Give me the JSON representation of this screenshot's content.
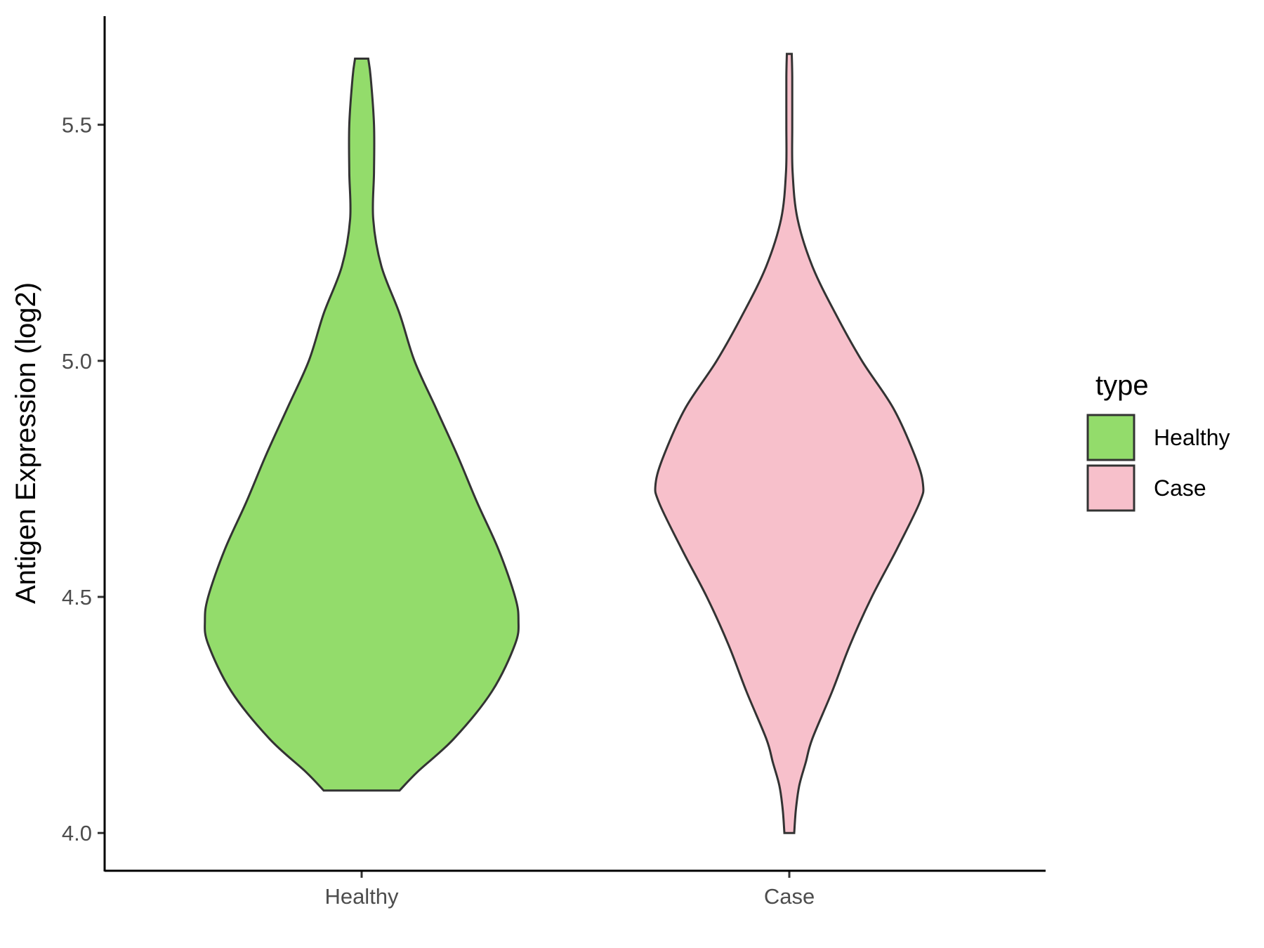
{
  "chart_data": {
    "type": "violin",
    "title": "",
    "xlabel": "",
    "ylabel": "Antigen Expression (log2)",
    "ylim": [
      3.92,
      5.73
    ],
    "y_ticks": [
      "4.0",
      "4.5",
      "5.0",
      "5.5"
    ],
    "y_tick_values": [
      4.0,
      4.5,
      5.0,
      5.5
    ],
    "categories": [
      "Healthy",
      "Case"
    ],
    "grid": false,
    "legend": {
      "title": "type",
      "position": "right",
      "entries": [
        {
          "label": "Healthy",
          "color": "#93DC6B"
        },
        {
          "label": "Case",
          "color": "#F7C0CB"
        }
      ]
    },
    "series": [
      {
        "name": "Healthy",
        "color": "#93DC6B",
        "y_min": 4.09,
        "y_max": 5.64,
        "density_profile": [
          [
            4.09,
            0.23
          ],
          [
            4.13,
            0.34
          ],
          [
            4.2,
            0.56
          ],
          [
            4.3,
            0.79
          ],
          [
            4.4,
            0.93
          ],
          [
            4.45,
            0.95
          ],
          [
            4.5,
            0.93
          ],
          [
            4.6,
            0.83
          ],
          [
            4.7,
            0.7
          ],
          [
            4.8,
            0.58
          ],
          [
            4.9,
            0.45
          ],
          [
            5.0,
            0.32
          ],
          [
            5.1,
            0.23
          ],
          [
            5.2,
            0.12
          ],
          [
            5.3,
            0.07
          ],
          [
            5.4,
            0.075
          ],
          [
            5.5,
            0.075
          ],
          [
            5.6,
            0.055
          ],
          [
            5.64,
            0.04
          ]
        ]
      },
      {
        "name": "Case",
        "color": "#F7C0CB",
        "y_min": 4.0,
        "y_max": 5.65,
        "density_profile": [
          [
            4.0,
            0.03
          ],
          [
            4.05,
            0.04
          ],
          [
            4.1,
            0.06
          ],
          [
            4.15,
            0.1
          ],
          [
            4.2,
            0.14
          ],
          [
            4.3,
            0.26
          ],
          [
            4.4,
            0.37
          ],
          [
            4.5,
            0.5
          ],
          [
            4.6,
            0.65
          ],
          [
            4.7,
            0.79
          ],
          [
            4.74,
            0.81
          ],
          [
            4.8,
            0.76
          ],
          [
            4.9,
            0.63
          ],
          [
            5.0,
            0.44
          ],
          [
            5.1,
            0.28
          ],
          [
            5.2,
            0.14
          ],
          [
            5.3,
            0.05
          ],
          [
            5.4,
            0.02
          ],
          [
            5.5,
            0.018
          ],
          [
            5.6,
            0.018
          ],
          [
            5.65,
            0.015
          ]
        ]
      }
    ]
  }
}
